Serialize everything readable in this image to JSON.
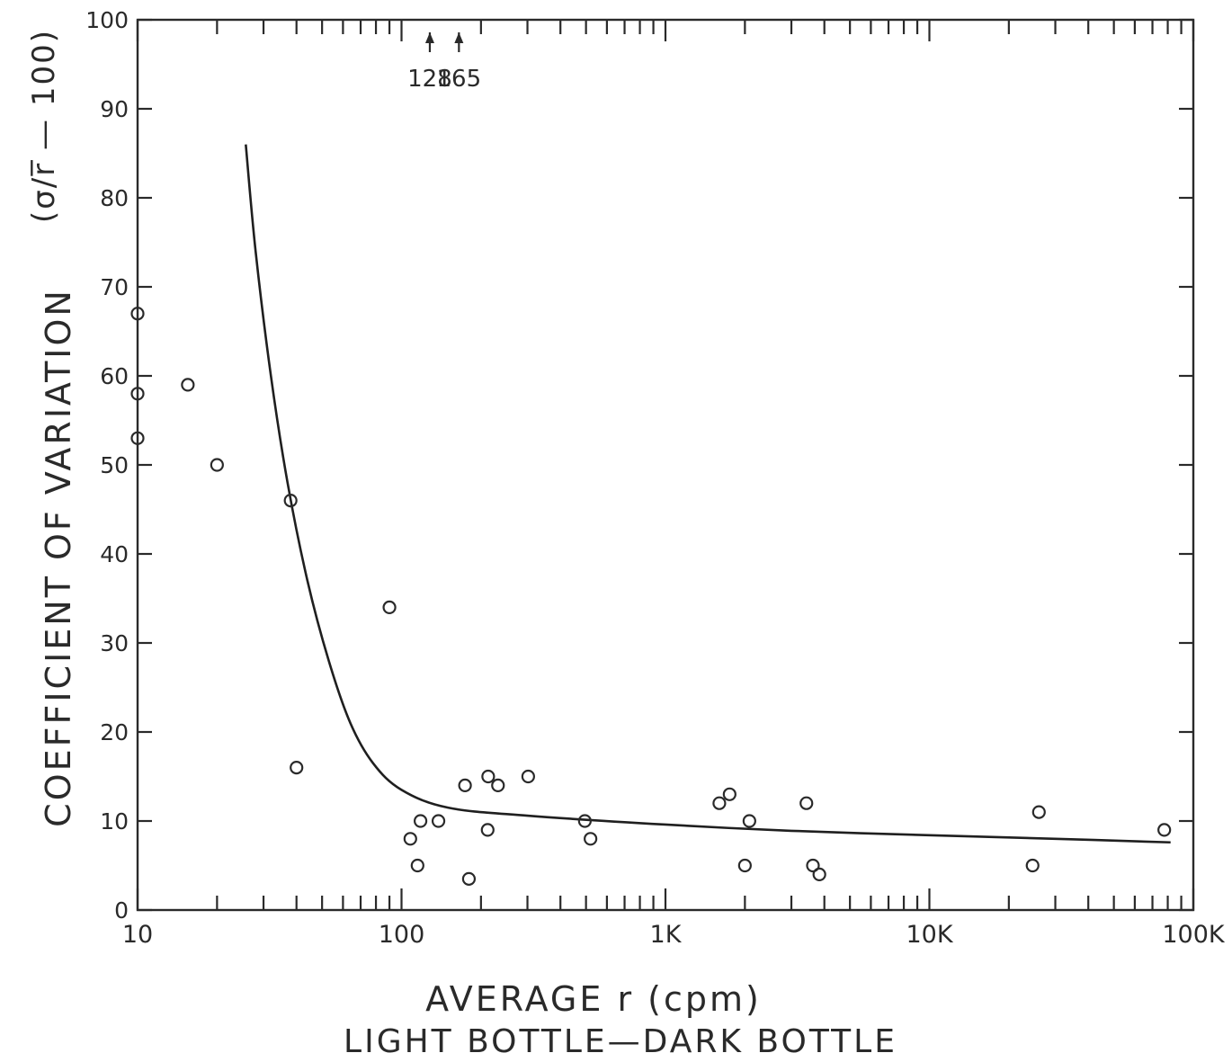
{
  "chart_data": {
    "type": "scatter",
    "title": "",
    "xlabel": "AVERAGE r (cpm)",
    "xlabel_sub": "LIGHT BOTTLE—DARK BOTTLE",
    "ylabel": "COEFFICIENT OF VARIATION",
    "ylabel_formula": "(σ/r̅ — 100)",
    "x_scale": "log",
    "xlim": [
      10,
      100000
    ],
    "ylim": [
      0,
      100
    ],
    "x_ticks": [
      {
        "value": 10,
        "label": "10"
      },
      {
        "value": 100,
        "label": "100"
      },
      {
        "value": 1000,
        "label": "1K"
      },
      {
        "value": 10000,
        "label": "10K"
      },
      {
        "value": 100000,
        "label": "100K"
      }
    ],
    "y_ticks": [
      {
        "value": 0,
        "label": "0"
      },
      {
        "value": 10,
        "label": "10"
      },
      {
        "value": 20,
        "label": "20"
      },
      {
        "value": 30,
        "label": "30"
      },
      {
        "value": 40,
        "label": "40"
      },
      {
        "value": 50,
        "label": "50"
      },
      {
        "value": 60,
        "label": "60"
      },
      {
        "value": 70,
        "label": "70"
      },
      {
        "value": 80,
        "label": "80"
      },
      {
        "value": 90,
        "label": "90"
      },
      {
        "value": 100,
        "label": "100"
      }
    ],
    "annotations": [
      {
        "x": 128,
        "label": "128"
      },
      {
        "x": 165,
        "label": "165"
      }
    ],
    "grid": false,
    "points": [
      {
        "x": 10,
        "y": 67
      },
      {
        "x": 10,
        "y": 58
      },
      {
        "x": 10,
        "y": 53
      },
      {
        "x": 15.5,
        "y": 59
      },
      {
        "x": 20,
        "y": 50
      },
      {
        "x": 38,
        "y": 46
      },
      {
        "x": 40,
        "y": 16
      },
      {
        "x": 90,
        "y": 34
      },
      {
        "x": 108,
        "y": 8
      },
      {
        "x": 115,
        "y": 5
      },
      {
        "x": 118,
        "y": 10
      },
      {
        "x": 138,
        "y": 10
      },
      {
        "x": 174,
        "y": 14
      },
      {
        "x": 180,
        "y": 3.5
      },
      {
        "x": 212,
        "y": 9
      },
      {
        "x": 213,
        "y": 15
      },
      {
        "x": 232,
        "y": 14
      },
      {
        "x": 302,
        "y": 15
      },
      {
        "x": 495,
        "y": 10
      },
      {
        "x": 520,
        "y": 8
      },
      {
        "x": 1600,
        "y": 12
      },
      {
        "x": 1750,
        "y": 13
      },
      {
        "x": 2000,
        "y": 5
      },
      {
        "x": 2080,
        "y": 10
      },
      {
        "x": 3420,
        "y": 12
      },
      {
        "x": 3620,
        "y": 5
      },
      {
        "x": 3830,
        "y": 4
      },
      {
        "x": 24600,
        "y": 5
      },
      {
        "x": 26000,
        "y": 11
      },
      {
        "x": 77600,
        "y": 9
      }
    ],
    "fit_curve": [
      {
        "x": 25.7,
        "y": 86
      },
      {
        "x": 28,
        "y": 74
      },
      {
        "x": 32,
        "y": 60
      },
      {
        "x": 37,
        "y": 48
      },
      {
        "x": 44,
        "y": 37
      },
      {
        "x": 53,
        "y": 28
      },
      {
        "x": 64,
        "y": 21
      },
      {
        "x": 78,
        "y": 16.5
      },
      {
        "x": 100,
        "y": 13.5
      },
      {
        "x": 150,
        "y": 11.5
      },
      {
        "x": 300,
        "y": 10.6
      },
      {
        "x": 1000,
        "y": 9.6
      },
      {
        "x": 3000,
        "y": 8.9
      },
      {
        "x": 10000,
        "y": 8.4
      },
      {
        "x": 30000,
        "y": 8.0
      },
      {
        "x": 82000,
        "y": 7.6
      }
    ]
  }
}
